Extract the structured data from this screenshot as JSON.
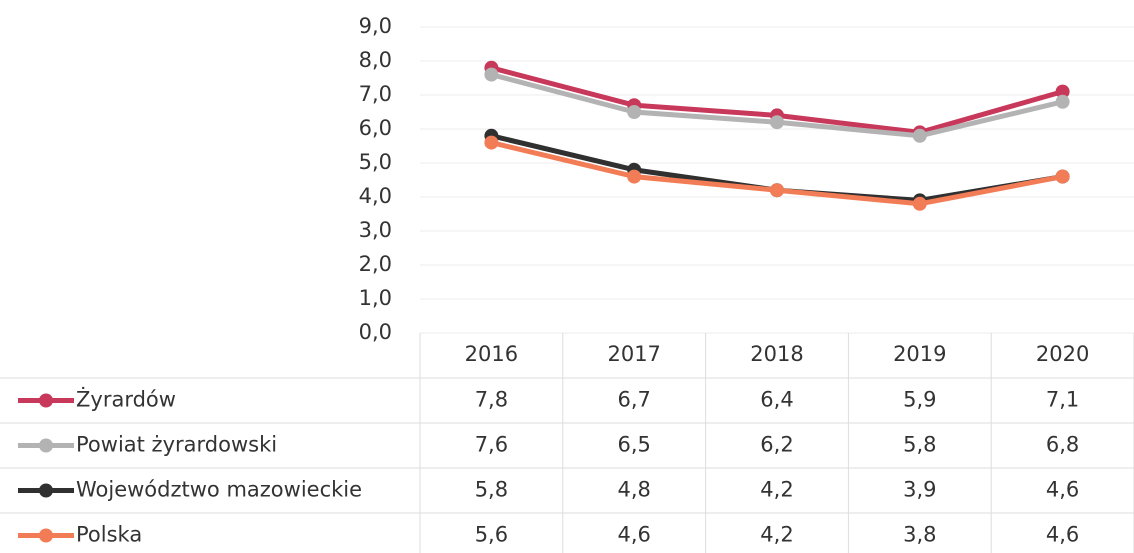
{
  "chart_data": {
    "type": "line",
    "categories": [
      "2016",
      "2017",
      "2018",
      "2019",
      "2020"
    ],
    "series": [
      {
        "name": "Żyrardów",
        "color": "#c8385a",
        "values": [
          7.8,
          6.7,
          6.4,
          5.9,
          7.1
        ],
        "value_labels": [
          "7,8",
          "6,7",
          "6,4",
          "5,9",
          "7,1"
        ]
      },
      {
        "name": "Powiat żyrardowski",
        "color": "#b3b3b3",
        "values": [
          7.6,
          6.5,
          6.2,
          5.8,
          6.8
        ],
        "value_labels": [
          "7,6",
          "6,5",
          "6,2",
          "5,8",
          "6,8"
        ]
      },
      {
        "name": "Województwo mazowieckie",
        "color": "#303030",
        "values": [
          5.8,
          4.8,
          4.2,
          3.9,
          4.6
        ],
        "value_labels": [
          "5,8",
          "4,8",
          "4,2",
          "3,9",
          "4,6"
        ]
      },
      {
        "name": "Polska",
        "color": "#f27c56",
        "values": [
          5.6,
          4.6,
          4.2,
          3.8,
          4.6
        ],
        "value_labels": [
          "5,6",
          "4,6",
          "4,2",
          "3,8",
          "4,6"
        ]
      }
    ],
    "ylim": [
      0,
      9
    ],
    "yticks": [
      {
        "value": 0,
        "label": "0,0"
      },
      {
        "value": 1,
        "label": "1,0"
      },
      {
        "value": 2,
        "label": "2,0"
      },
      {
        "value": 3,
        "label": "3,0"
      },
      {
        "value": 4,
        "label": "4,0"
      },
      {
        "value": 5,
        "label": "5,0"
      },
      {
        "value": 6,
        "label": "6,0"
      },
      {
        "value": 7,
        "label": "7,0"
      },
      {
        "value": 8,
        "label": "8,0"
      },
      {
        "value": 9,
        "label": "9,0"
      }
    ],
    "grid": true
  }
}
